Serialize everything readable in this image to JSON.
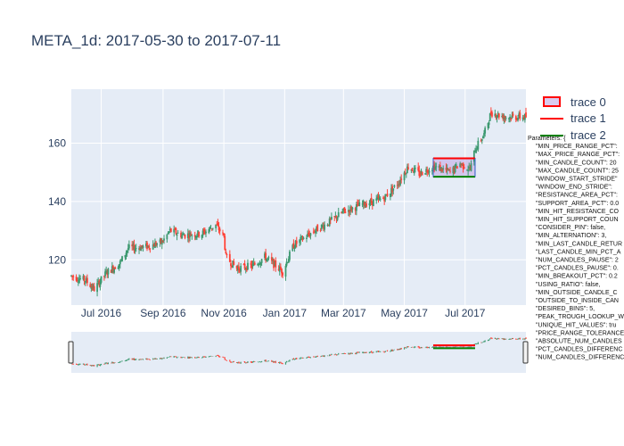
{
  "title": "META_1d: 2017-05-30 to 2017-07-11",
  "colors": {
    "plot_bg": "#e5ecf6",
    "grid": "#ffffff",
    "up": "#3d9970",
    "down": "#ff4136",
    "resistance": "#ff0000",
    "support": "#008000",
    "shade": "#c1a6e3",
    "text": "#2a3f5f"
  },
  "chart_data": {
    "type": "candlestick",
    "x_start": "2016-06-01",
    "x_end": "2017-08-31",
    "x_ticks": [
      "Jul 2016",
      "Sep 2016",
      "Nov 2016",
      "Jan 2017",
      "Mar 2017",
      "May 2017",
      "Jul 2017"
    ],
    "x_tick_dates": [
      "2016-07-01",
      "2016-09-01",
      "2016-11-01",
      "2017-01-01",
      "2017-03-01",
      "2017-05-01",
      "2017-07-01"
    ],
    "y_ticks": [
      120,
      140,
      160
    ],
    "ylim": [
      104.5,
      178.5
    ],
    "price_path": [
      [
        "2016-06-01",
        114.5
      ],
      [
        "2016-06-15",
        113.0
      ],
      [
        "2016-06-24",
        110.0
      ],
      [
        "2016-07-06",
        115.5
      ],
      [
        "2016-07-20",
        119.0
      ],
      [
        "2016-07-28",
        124.0
      ],
      [
        "2016-08-15",
        124.5
      ],
      [
        "2016-08-31",
        126.0
      ],
      [
        "2016-09-08",
        130.0
      ],
      [
        "2016-09-20",
        128.5
      ],
      [
        "2016-10-10",
        129.0
      ],
      [
        "2016-10-24",
        132.0
      ],
      [
        "2016-11-01",
        128.0
      ],
      [
        "2016-11-03",
        121.0
      ],
      [
        "2016-11-14",
        117.0
      ],
      [
        "2016-11-30",
        118.0
      ],
      [
        "2016-12-12",
        121.0
      ],
      [
        "2016-12-30",
        116.0
      ],
      [
        "2017-01-10",
        125.0
      ],
      [
        "2017-01-31",
        130.0
      ],
      [
        "2017-02-15",
        133.0
      ],
      [
        "2017-03-01",
        136.5
      ],
      [
        "2017-03-20",
        139.0
      ],
      [
        "2017-04-10",
        141.0
      ],
      [
        "2017-04-24",
        146.0
      ],
      [
        "2017-05-05",
        152.0
      ],
      [
        "2017-05-16",
        149.5
      ],
      [
        "2017-05-30",
        152.0
      ],
      [
        "2017-06-09",
        151.0
      ],
      [
        "2017-06-16",
        150.0
      ],
      [
        "2017-06-26",
        153.0
      ],
      [
        "2017-07-06",
        151.0
      ],
      [
        "2017-07-11",
        158.0
      ],
      [
        "2017-07-20",
        163.0
      ],
      [
        "2017-07-27",
        170.5
      ],
      [
        "2017-08-10",
        169.0
      ],
      [
        "2017-08-31",
        169.0
      ]
    ],
    "patterns": [
      {
        "name": "trace 0",
        "x0": "2017-05-30",
        "x1": "2017-07-11",
        "y_top": 154.8,
        "y_bottom": 148.5
      },
      {
        "name": "trace 1",
        "x0": "2017-05-30",
        "x1": "2017-07-11",
        "y": 154.8
      },
      {
        "name": "trace 2",
        "x0": "2017-05-30",
        "x1": "2017-07-11",
        "y": 148.5
      }
    ]
  },
  "legend": [
    "trace 0",
    "trace 1",
    "trace 2"
  ],
  "parameters_text": [
    "Parameters: {",
    "\"MIN_PRICE_RANGE_PCT\":",
    "\"MAX_PRICE_RANGE_PCT\":",
    "\"MIN_CANDLE_COUNT\": 20",
    "\"MAX_CANDLE_COUNT\": 25",
    "\"WINDOW_START_STRIDE\"",
    "\"WINDOW_END_STRIDE\":",
    "\"RESISTANCE_AREA_PCT\":",
    "\"SUPPORT_AREA_PCT\": 0.0",
    "\"MIN_HIT_RESISTANCE_CO",
    "\"MIN_HIT_SUPPORT_COUN",
    "\"CONSIDER_PIN\": false,",
    "\"MIN_ALTERNATION\": 3,",
    "\"MIN_LAST_CANDLE_RETUR",
    "\"LAST_CANDLE_MIN_PCT_A",
    "\"NUM_CANDLES_PAUSE\": 2",
    "\"PCT_CANDLES_PAUSE\": 0.",
    "\"MIN_BREAKOUT_PCT\": 0.2",
    "\"USING_RATIO\": false,",
    "\"MIN_OUTSIDE_CANDLE_C",
    "\"OUTSIDE_TO_INSIDE_CAN",
    "\"DESIRED_BINS\": 5,",
    "\"PEAK_TROUGH_LOOKUP_W",
    "\"UNIQUE_HIT_VALUES\": tru",
    "\"PRICE_RANGE_TOLERANCE",
    "\"ABSOLUTE_NUM_CANDLES",
    "\"PCT_CANDLES_DIFFERENC",
    "\"NUM_CANDLES_DIFFERENC"
  ]
}
